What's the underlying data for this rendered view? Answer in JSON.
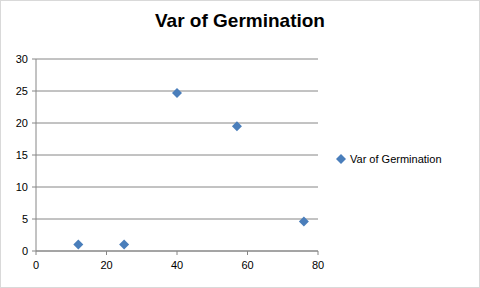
{
  "chart_data": {
    "type": "scatter",
    "title": "Var of Germination",
    "series": [
      {
        "name": "Var of Germination",
        "color": "#4a7ebb",
        "marker": "diamond",
        "x": [
          12,
          25,
          40,
          57,
          76
        ],
        "values": [
          1,
          1,
          24.7,
          19.5,
          4.6
        ]
      }
    ],
    "xlim": [
      0,
      80
    ],
    "xticks": [
      0,
      20,
      40,
      60,
      80
    ],
    "ylim": [
      0,
      30
    ],
    "yticks": [
      0,
      5,
      10,
      15,
      20,
      25,
      30
    ],
    "grid": true,
    "legend": "right"
  }
}
